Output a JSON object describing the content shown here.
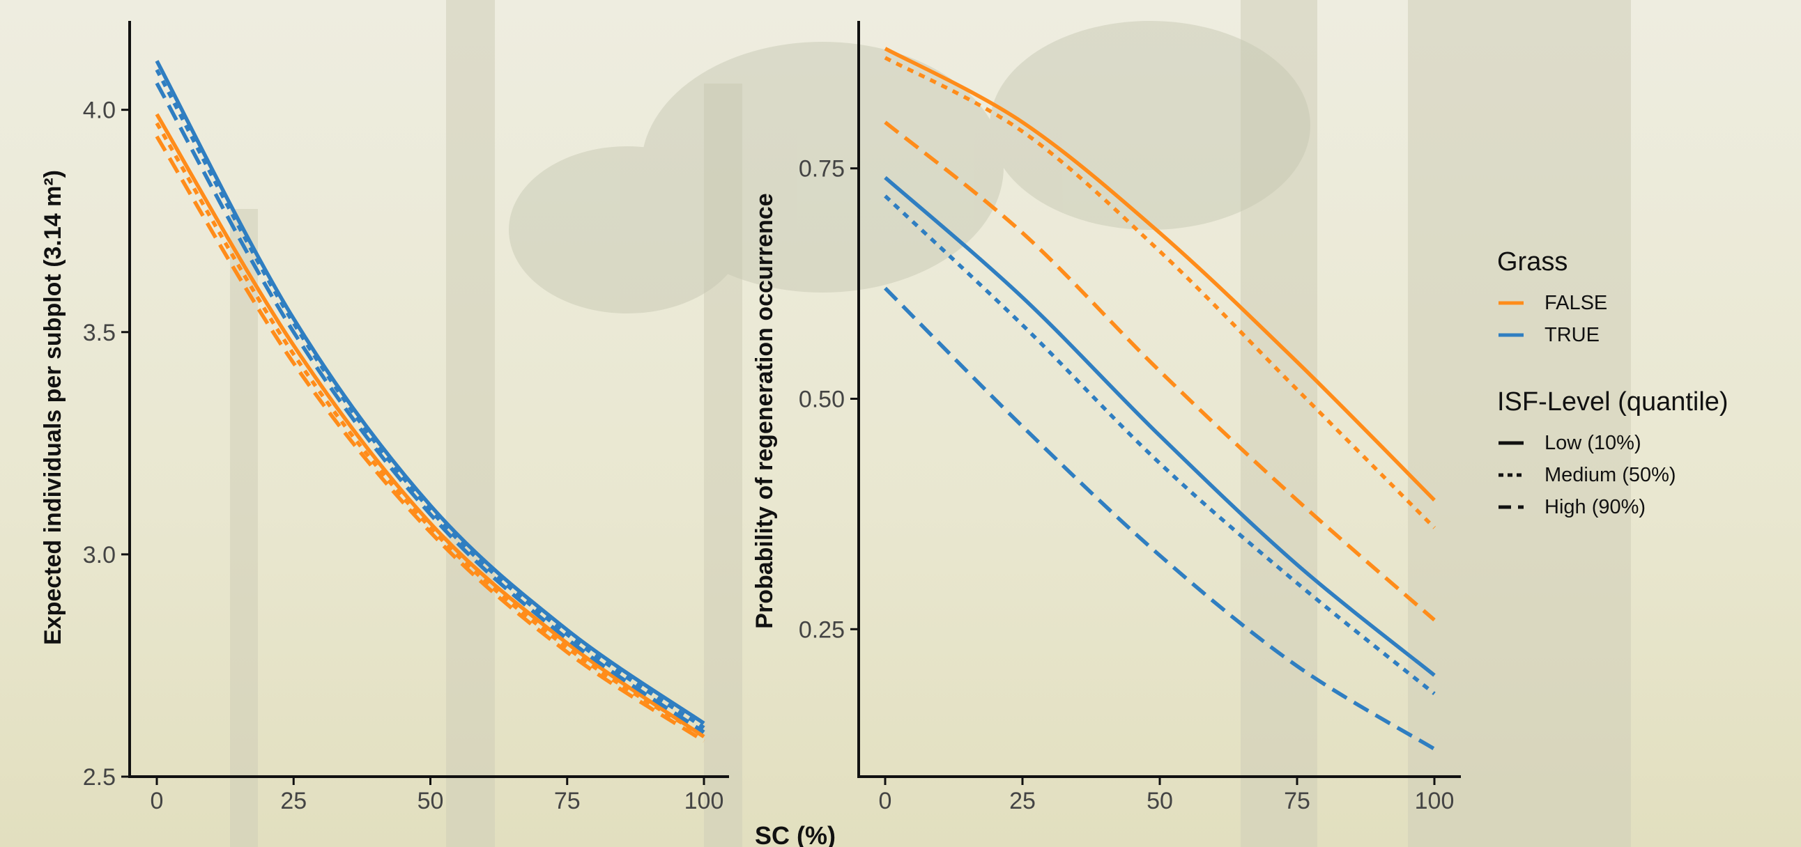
{
  "chart_data": [
    {
      "type": "line",
      "ylabel": "Expected individuals per subplot (3.14 m²)",
      "xlim": [
        0,
        100
      ],
      "ylim": [
        2.5,
        4.2
      ],
      "x_ticks": [
        0,
        25,
        50,
        75,
        100
      ],
      "x_tick_labels": [
        "0",
        "25",
        "50",
        "75",
        "100"
      ],
      "y_ticks": [
        2.5,
        3.0,
        3.5,
        4.0
      ],
      "y_tick_labels": [
        "2.5",
        "3.0",
        "3.5",
        "4.0"
      ],
      "x": [
        0,
        25,
        50,
        75,
        100
      ],
      "series": [
        {
          "grass": "FALSE",
          "isf": "Low (10%)",
          "values": [
            3.99,
            3.47,
            3.07,
            2.8,
            2.59
          ]
        },
        {
          "grass": "FALSE",
          "isf": "Medium (50%)",
          "values": [
            3.97,
            3.45,
            3.06,
            2.79,
            2.59
          ]
        },
        {
          "grass": "FALSE",
          "isf": "High (90%)",
          "values": [
            3.94,
            3.43,
            3.05,
            2.78,
            2.58
          ]
        },
        {
          "grass": "TRUE",
          "isf": "Low (10%)",
          "values": [
            4.11,
            3.53,
            3.11,
            2.83,
            2.62
          ]
        },
        {
          "grass": "TRUE",
          "isf": "Medium (50%)",
          "values": [
            4.09,
            3.52,
            3.1,
            2.82,
            2.61
          ]
        },
        {
          "grass": "TRUE",
          "isf": "High (90%)",
          "values": [
            4.06,
            3.5,
            3.09,
            2.81,
            2.6
          ]
        }
      ]
    },
    {
      "type": "line",
      "ylabel": "Probability of regeneration occurrence",
      "xlim": [
        0,
        100
      ],
      "ylim": [
        0.09,
        0.91
      ],
      "x_ticks": [
        0,
        25,
        50,
        75,
        100
      ],
      "x_tick_labels": [
        "0",
        "25",
        "50",
        "75",
        "100"
      ],
      "y_ticks": [
        0.25,
        0.5,
        0.75
      ],
      "y_tick_labels": [
        "0.25",
        "0.50",
        "0.75"
      ],
      "x": [
        0,
        25,
        50,
        75,
        100
      ],
      "series": [
        {
          "grass": "FALSE",
          "isf": "Low (10%)",
          "values": [
            0.88,
            0.8,
            0.68,
            0.54,
            0.39
          ]
        },
        {
          "grass": "FALSE",
          "isf": "Medium (50%)",
          "values": [
            0.87,
            0.79,
            0.66,
            0.51,
            0.36
          ]
        },
        {
          "grass": "FALSE",
          "isf": "High (90%)",
          "values": [
            0.8,
            0.68,
            0.53,
            0.39,
            0.26
          ]
        },
        {
          "grass": "TRUE",
          "isf": "Low (10%)",
          "values": [
            0.74,
            0.61,
            0.46,
            0.32,
            0.2
          ]
        },
        {
          "grass": "TRUE",
          "isf": "Medium (50%)",
          "values": [
            0.72,
            0.58,
            0.43,
            0.3,
            0.18
          ]
        },
        {
          "grass": "TRUE",
          "isf": "High (90%)",
          "values": [
            0.62,
            0.47,
            0.33,
            0.21,
            0.12
          ]
        }
      ]
    }
  ],
  "shared_xlabel": "SC (%)",
  "legend": {
    "placement": "right",
    "grass_title": "Grass",
    "grass_items": [
      {
        "label": "FALSE",
        "color": "#ff8c1a"
      },
      {
        "label": "TRUE",
        "color": "#2f7ec1"
      }
    ],
    "isf_title": "ISF-Level (quantile)",
    "isf_items": [
      {
        "label": "Low (10%)",
        "style": "solid"
      },
      {
        "label": "Medium (50%)",
        "style": "dotted"
      },
      {
        "label": "High (90%)",
        "style": "dashed"
      }
    ]
  },
  "colors": {
    "FALSE": "#ff8c1a",
    "TRUE": "#2f7ec1",
    "background": "#ece9d6",
    "axis": "#111111"
  }
}
